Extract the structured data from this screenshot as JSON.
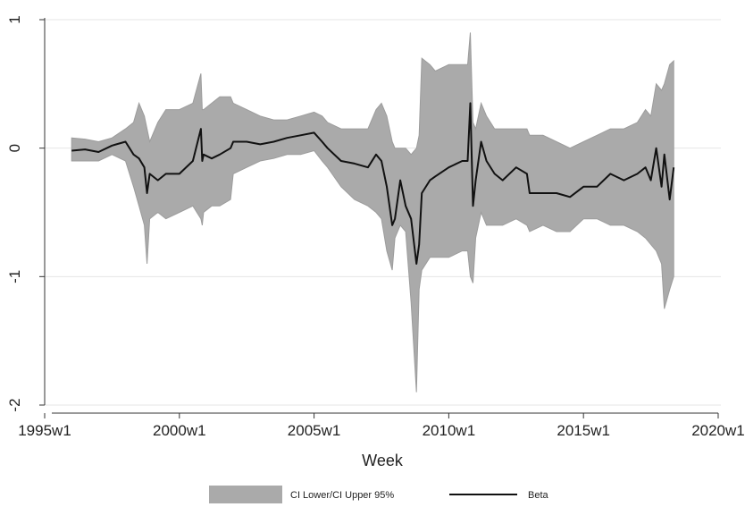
{
  "chart_data": {
    "type": "line",
    "title": "",
    "xlabel": "Week",
    "ylabel": "",
    "xlim": [
      1995,
      2020.1
    ],
    "ylim": [
      -2,
      1
    ],
    "x_ticks": [
      {
        "value": 1995,
        "label": "1995w1"
      },
      {
        "value": 2000,
        "label": "2000w1"
      },
      {
        "value": 2005,
        "label": "2005w1"
      },
      {
        "value": 2010,
        "label": "2010w1"
      },
      {
        "value": 2015,
        "label": "2015w1"
      },
      {
        "value": 2020,
        "label": "2020w1"
      }
    ],
    "y_ticks": [
      {
        "value": 1,
        "label": "1"
      },
      {
        "value": 0,
        "label": "0"
      },
      {
        "value": -1,
        "label": "-1"
      },
      {
        "value": -2,
        "label": "-2"
      }
    ],
    "grid": true,
    "legend_position": "bottom",
    "legend": [
      {
        "label": "CI Lower/CI Upper 95%",
        "kind": "area"
      },
      {
        "label": "Beta",
        "kind": "line"
      }
    ],
    "colors": {
      "band": "#aaaaaa",
      "band_edge": "#9c9c9c",
      "beta": "#111111",
      "grid": "#e6e6e6"
    },
    "x": [
      1996.0,
      1996.5,
      1997.0,
      1997.5,
      1998.0,
      1998.3,
      1998.5,
      1998.7,
      1998.8,
      1998.9,
      1999.2,
      1999.5,
      2000.0,
      2000.5,
      2000.8,
      2000.85,
      2000.9,
      2001.2,
      2001.5,
      2001.9,
      2002.0,
      2002.5,
      2003.0,
      2003.5,
      2004.0,
      2004.5,
      2005.0,
      2005.3,
      2005.5,
      2006.0,
      2006.5,
      2007.0,
      2007.3,
      2007.5,
      2007.7,
      2007.9,
      2008.0,
      2008.2,
      2008.4,
      2008.6,
      2008.8,
      2008.9,
      2009.0,
      2009.3,
      2009.5,
      2010.0,
      2010.5,
      2010.7,
      2010.8,
      2010.9,
      2011.0,
      2011.2,
      2011.4,
      2011.7,
      2012.0,
      2012.5,
      2012.9,
      2013.0,
      2013.5,
      2014.0,
      2014.5,
      2015.0,
      2015.5,
      2016.0,
      2016.5,
      2017.0,
      2017.3,
      2017.5,
      2017.7,
      2017.9,
      2018.0,
      2018.2,
      2018.35
    ],
    "beta": [
      -0.02,
      -0.01,
      -0.03,
      0.02,
      0.05,
      -0.05,
      -0.08,
      -0.15,
      -0.35,
      -0.2,
      -0.25,
      -0.2,
      -0.2,
      -0.1,
      0.15,
      -0.1,
      -0.05,
      -0.08,
      -0.05,
      0.0,
      0.05,
      0.05,
      0.03,
      0.05,
      0.08,
      0.1,
      0.12,
      0.05,
      0.0,
      -0.1,
      -0.12,
      -0.15,
      -0.05,
      -0.1,
      -0.3,
      -0.6,
      -0.55,
      -0.25,
      -0.45,
      -0.55,
      -0.9,
      -0.75,
      -0.35,
      -0.25,
      -0.22,
      -0.15,
      -0.1,
      -0.1,
      0.35,
      -0.45,
      -0.25,
      0.05,
      -0.1,
      -0.2,
      -0.25,
      -0.15,
      -0.2,
      -0.35,
      -0.35,
      -0.35,
      -0.38,
      -0.3,
      -0.3,
      -0.2,
      -0.25,
      -0.2,
      -0.15,
      -0.25,
      0.0,
      -0.3,
      -0.05,
      -0.4,
      -0.15
    ],
    "ci_upper": [
      0.08,
      0.07,
      0.05,
      0.08,
      0.15,
      0.2,
      0.35,
      0.25,
      0.15,
      0.05,
      0.2,
      0.3,
      0.3,
      0.35,
      0.58,
      0.3,
      0.3,
      0.35,
      0.4,
      0.4,
      0.35,
      0.3,
      0.25,
      0.22,
      0.22,
      0.25,
      0.28,
      0.25,
      0.2,
      0.15,
      0.15,
      0.15,
      0.3,
      0.35,
      0.25,
      0.05,
      0.0,
      0.0,
      0.0,
      -0.05,
      0.0,
      0.1,
      0.7,
      0.65,
      0.6,
      0.65,
      0.65,
      0.65,
      0.9,
      0.2,
      0.15,
      0.35,
      0.25,
      0.15,
      0.15,
      0.15,
      0.15,
      0.1,
      0.1,
      0.05,
      0.0,
      0.05,
      0.1,
      0.15,
      0.15,
      0.2,
      0.3,
      0.25,
      0.5,
      0.45,
      0.5,
      0.65,
      0.68
    ],
    "ci_lower": [
      -0.1,
      -0.1,
      -0.1,
      -0.05,
      -0.1,
      -0.3,
      -0.45,
      -0.6,
      -0.9,
      -0.55,
      -0.5,
      -0.55,
      -0.5,
      -0.45,
      -0.55,
      -0.6,
      -0.5,
      -0.45,
      -0.45,
      -0.4,
      -0.2,
      -0.15,
      -0.1,
      -0.08,
      -0.05,
      -0.05,
      -0.02,
      -0.1,
      -0.15,
      -0.3,
      -0.4,
      -0.45,
      -0.5,
      -0.55,
      -0.8,
      -0.95,
      -0.7,
      -0.6,
      -0.65,
      -1.2,
      -1.9,
      -1.1,
      -0.95,
      -0.85,
      -0.85,
      -0.85,
      -0.8,
      -0.8,
      -1.0,
      -1.05,
      -0.7,
      -0.5,
      -0.6,
      -0.6,
      -0.6,
      -0.55,
      -0.6,
      -0.65,
      -0.6,
      -0.65,
      -0.65,
      -0.55,
      -0.55,
      -0.6,
      -0.6,
      -0.65,
      -0.7,
      -0.75,
      -0.8,
      -0.9,
      -1.25,
      -1.1,
      -1.0
    ]
  }
}
